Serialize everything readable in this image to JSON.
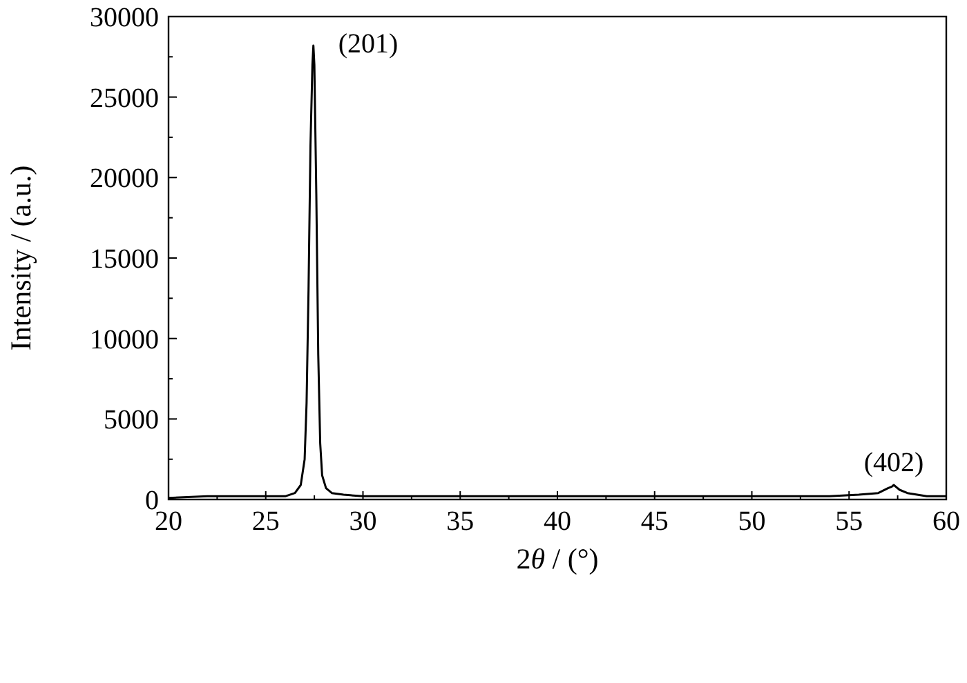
{
  "chart_data": {
    "type": "line",
    "xlabel": "2θ / (°)",
    "ylabel": "Intensity / (a.u.)",
    "xlim": [
      20,
      60
    ],
    "ylim": [
      0,
      30000
    ],
    "xticks": [
      20,
      25,
      30,
      35,
      40,
      45,
      50,
      55,
      60
    ],
    "yticks": [
      0,
      5000,
      10000,
      15000,
      20000,
      25000,
      30000
    ],
    "grid": false,
    "annotations": [
      {
        "text": "(201)",
        "x": 27.45,
        "y": 28200
      },
      {
        "text": "(402)",
        "x": 57.3,
        "y": 900
      }
    ],
    "series": [
      {
        "color": "#000000",
        "x": [
          20,
          22,
          24,
          25,
          26,
          26.5,
          26.8,
          27.0,
          27.1,
          27.2,
          27.3,
          27.4,
          27.45,
          27.5,
          27.6,
          27.7,
          27.8,
          27.9,
          28.1,
          28.4,
          29,
          30,
          32,
          35,
          40,
          45,
          50,
          54,
          55.5,
          56.5,
          57.0,
          57.2,
          57.3,
          57.4,
          57.6,
          58,
          58.5,
          59,
          60
        ],
        "values": [
          100,
          200,
          200,
          200,
          200,
          400,
          900,
          2500,
          6000,
          13000,
          22000,
          27000,
          28200,
          27000,
          19000,
          9000,
          3500,
          1500,
          700,
          400,
          300,
          200,
          200,
          200,
          200,
          200,
          200,
          200,
          300,
          400,
          700,
          800,
          900,
          800,
          600,
          400,
          300,
          200,
          200
        ]
      }
    ]
  }
}
